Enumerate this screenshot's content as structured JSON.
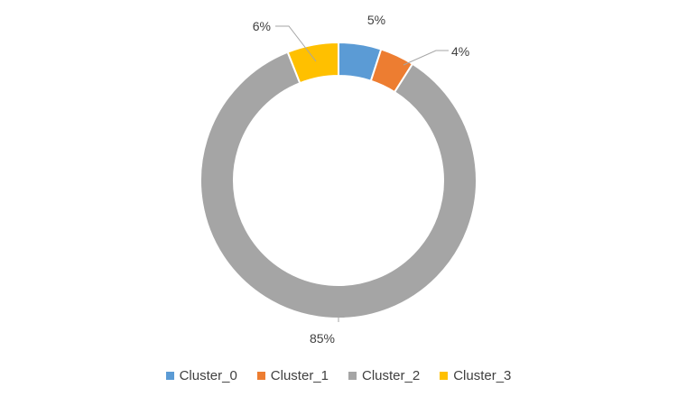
{
  "chart_data": {
    "type": "pie",
    "variant": "doughnut",
    "categories": [
      "Cluster_0",
      "Cluster_1",
      "Cluster_2",
      "Cluster_3"
    ],
    "values": [
      5,
      4,
      85,
      6
    ],
    "labels": [
      "5%",
      "4%",
      "85%",
      "6%"
    ],
    "colors": [
      "#5B9BD5",
      "#ED7D31",
      "#A5A5A5",
      "#FFC000"
    ],
    "title": "",
    "legend_position": "bottom"
  }
}
